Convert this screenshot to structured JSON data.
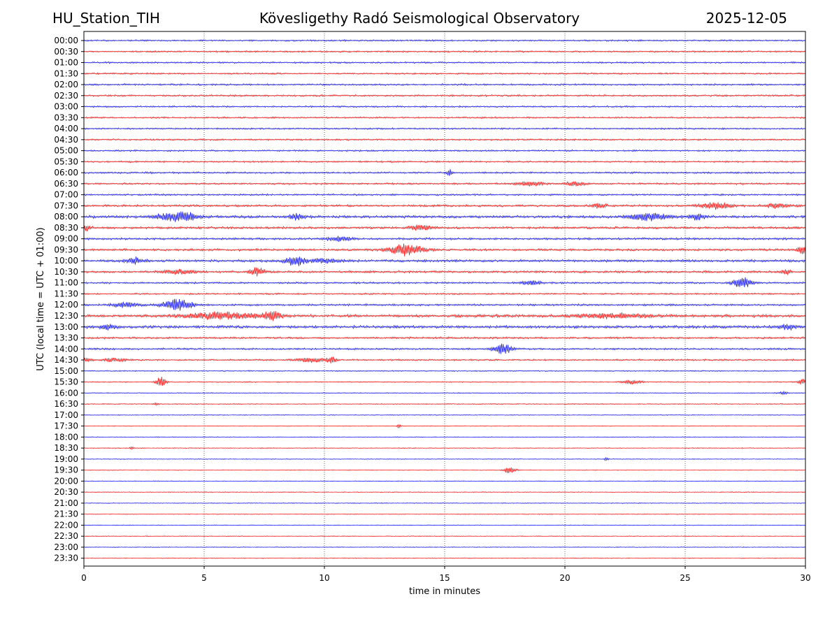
{
  "header": {
    "station": "HU_Station_TIH",
    "observatory": "Kövesligethy Radó Seismological Observatory",
    "date": "2025-12-05"
  },
  "chart_data": {
    "type": "line",
    "title": "Kövesligethy Radó Seismological Observatory",
    "xlabel": "time in minutes",
    "ylabel": "UTC (local time = UTC + 01:00)",
    "xlim": [
      0,
      30
    ],
    "x_ticks": [
      "0",
      "5",
      "10",
      "15",
      "20",
      "25",
      "30"
    ],
    "grid": "vertical dotted lines at 5-minute intervals",
    "colors": [
      "#0000ff",
      "#ff0000"
    ],
    "rows": [
      {
        "label": "00:00",
        "noise": 0.9,
        "events": []
      },
      {
        "label": "00:30",
        "noise": 0.9,
        "events": []
      },
      {
        "label": "01:00",
        "noise": 0.9,
        "events": []
      },
      {
        "label": "01:30",
        "noise": 0.9,
        "events": []
      },
      {
        "label": "02:00",
        "noise": 1.0,
        "events": []
      },
      {
        "label": "02:30",
        "noise": 1.0,
        "events": []
      },
      {
        "label": "03:00",
        "noise": 0.9,
        "events": []
      },
      {
        "label": "03:30",
        "noise": 0.9,
        "events": []
      },
      {
        "label": "04:00",
        "noise": 0.9,
        "events": []
      },
      {
        "label": "04:30",
        "noise": 0.9,
        "events": []
      },
      {
        "label": "05:00",
        "noise": 0.9,
        "events": []
      },
      {
        "label": "05:30",
        "noise": 0.9,
        "events": []
      },
      {
        "label": "06:00",
        "noise": 1.0,
        "events": [
          {
            "t": 15.2,
            "amp": 4,
            "dur": 0.12
          }
        ]
      },
      {
        "label": "06:30",
        "noise": 1.0,
        "events": [
          {
            "t": 18.5,
            "amp": 3,
            "dur": 0.5
          },
          {
            "t": 20.4,
            "amp": 3,
            "dur": 0.4
          }
        ]
      },
      {
        "label": "07:00",
        "noise": 1.0,
        "events": []
      },
      {
        "label": "07:30",
        "noise": 1.2,
        "events": [
          {
            "t": 21.4,
            "amp": 3,
            "dur": 0.3
          },
          {
            "t": 26.3,
            "amp": 5,
            "dur": 0.6
          },
          {
            "t": 28.8,
            "amp": 3,
            "dur": 0.5
          }
        ]
      },
      {
        "label": "08:00",
        "noise": 1.5,
        "events": [
          {
            "t": 3.5,
            "amp": 5,
            "dur": 0.6
          },
          {
            "t": 4.3,
            "amp": 5,
            "dur": 0.5
          },
          {
            "t": 8.9,
            "amp": 4,
            "dur": 0.3
          },
          {
            "t": 23.5,
            "amp": 5,
            "dur": 0.8
          },
          {
            "t": 25.5,
            "amp": 4,
            "dur": 0.3
          }
        ]
      },
      {
        "label": "08:30",
        "noise": 1.3,
        "events": [
          {
            "t": 0.1,
            "amp": 4,
            "dur": 0.2
          },
          {
            "t": 14.0,
            "amp": 4,
            "dur": 0.4
          }
        ]
      },
      {
        "label": "09:00",
        "noise": 1.2,
        "events": [
          {
            "t": 10.6,
            "amp": 3,
            "dur": 0.5
          }
        ]
      },
      {
        "label": "09:30",
        "noise": 1.2,
        "events": [
          {
            "t": 13.4,
            "amp": 8,
            "dur": 0.7
          },
          {
            "t": 29.9,
            "amp": 6,
            "dur": 0.2
          }
        ]
      },
      {
        "label": "10:00",
        "noise": 1.4,
        "events": [
          {
            "t": 2.1,
            "amp": 5,
            "dur": 0.3
          },
          {
            "t": 8.8,
            "amp": 7,
            "dur": 0.4
          },
          {
            "t": 10.0,
            "amp": 3,
            "dur": 0.5
          }
        ]
      },
      {
        "label": "10:30",
        "noise": 1.2,
        "events": [
          {
            "t": 4.0,
            "amp": 3,
            "dur": 0.6
          },
          {
            "t": 7.2,
            "amp": 6,
            "dur": 0.3
          },
          {
            "t": 29.2,
            "amp": 3,
            "dur": 0.2
          }
        ]
      },
      {
        "label": "11:00",
        "noise": 1.0,
        "events": [
          {
            "t": 18.6,
            "amp": 3,
            "dur": 0.4
          },
          {
            "t": 27.4,
            "amp": 7,
            "dur": 0.4
          }
        ]
      },
      {
        "label": "11:30",
        "noise": 0.9,
        "events": []
      },
      {
        "label": "12:00",
        "noise": 1.1,
        "events": [
          {
            "t": 1.7,
            "amp": 4,
            "dur": 0.5
          },
          {
            "t": 3.9,
            "amp": 8,
            "dur": 0.6
          }
        ]
      },
      {
        "label": "12:30",
        "noise": 1.5,
        "events": [
          {
            "t": 5.8,
            "amp": 5,
            "dur": 1.4
          },
          {
            "t": 7.8,
            "amp": 6,
            "dur": 0.4
          },
          {
            "t": 22.0,
            "amp": 3,
            "dur": 1.5
          }
        ]
      },
      {
        "label": "13:00",
        "noise": 1.5,
        "events": [
          {
            "t": 1.0,
            "amp": 4,
            "dur": 0.3
          },
          {
            "t": 29.3,
            "amp": 4,
            "dur": 0.3
          }
        ]
      },
      {
        "label": "13:30",
        "noise": 1.1,
        "events": []
      },
      {
        "label": "14:00",
        "noise": 1.0,
        "events": [
          {
            "t": 17.4,
            "amp": 7,
            "dur": 0.4
          }
        ]
      },
      {
        "label": "14:30",
        "noise": 0.9,
        "events": [
          {
            "t": 0.1,
            "amp": 3,
            "dur": 0.2
          },
          {
            "t": 1.3,
            "amp": 3,
            "dur": 0.4
          },
          {
            "t": 9.5,
            "amp": 3,
            "dur": 0.6
          },
          {
            "t": 10.3,
            "amp": 4,
            "dur": 0.2
          }
        ]
      },
      {
        "label": "15:00",
        "noise": 0.6,
        "events": []
      },
      {
        "label": "15:30",
        "noise": 0.6,
        "events": [
          {
            "t": 3.2,
            "amp": 8,
            "dur": 0.2
          },
          {
            "t": 22.8,
            "amp": 3,
            "dur": 0.4
          },
          {
            "t": 29.9,
            "amp": 4,
            "dur": 0.2
          }
        ]
      },
      {
        "label": "16:00",
        "noise": 0.5,
        "events": [
          {
            "t": 29.1,
            "amp": 2,
            "dur": 0.2
          }
        ]
      },
      {
        "label": "16:30",
        "noise": 0.5,
        "events": [
          {
            "t": 3.0,
            "amp": 2,
            "dur": 0.1
          }
        ]
      },
      {
        "label": "17:00",
        "noise": 0.4,
        "events": []
      },
      {
        "label": "17:30",
        "noise": 0.4,
        "events": [
          {
            "t": 13.1,
            "amp": 3,
            "dur": 0.08
          }
        ]
      },
      {
        "label": "18:00",
        "noise": 0.4,
        "events": []
      },
      {
        "label": "18:30",
        "noise": 0.4,
        "events": [
          {
            "t": 2.0,
            "amp": 2,
            "dur": 0.1
          }
        ]
      },
      {
        "label": "19:00",
        "noise": 0.4,
        "events": [
          {
            "t": 21.7,
            "amp": 2,
            "dur": 0.1
          }
        ]
      },
      {
        "label": "19:30",
        "noise": 0.4,
        "events": [
          {
            "t": 17.7,
            "amp": 5,
            "dur": 0.25
          }
        ]
      },
      {
        "label": "20:00",
        "noise": 0.4,
        "events": []
      },
      {
        "label": "20:30",
        "noise": 0.4,
        "events": []
      },
      {
        "label": "21:00",
        "noise": 0.4,
        "events": []
      },
      {
        "label": "21:30",
        "noise": 0.4,
        "events": []
      },
      {
        "label": "22:00",
        "noise": 0.4,
        "events": []
      },
      {
        "label": "22:30",
        "noise": 0.4,
        "events": []
      },
      {
        "label": "23:00",
        "noise": 0.4,
        "events": []
      },
      {
        "label": "23:30",
        "noise": 0.4,
        "events": []
      }
    ]
  }
}
